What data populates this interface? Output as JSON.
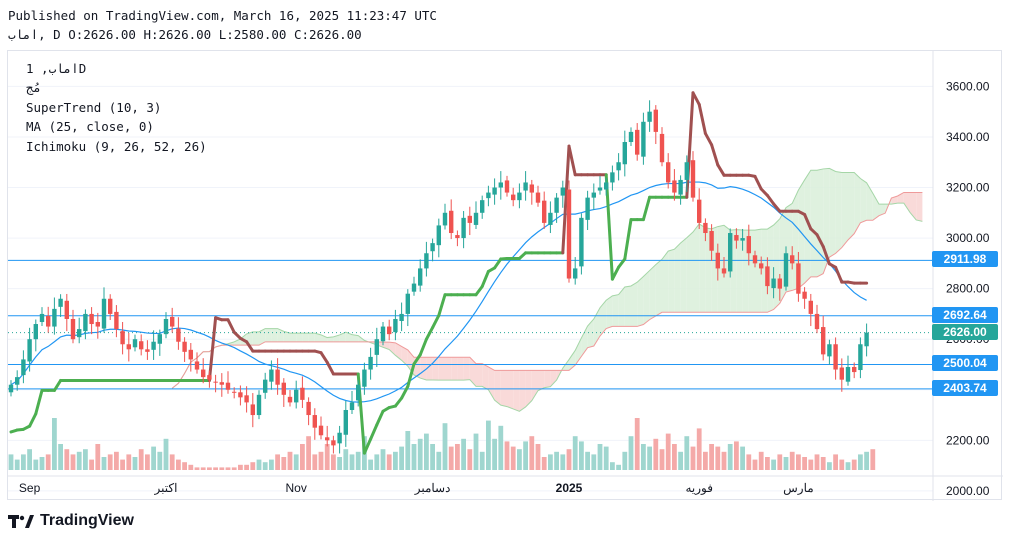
{
  "header": {
    "published": "Published on TradingView.com, March 16, 2025 11:23:47 UTC",
    "ohlc": "اماب, D O:2626.00 H:2626.00 L:2580.00 C:2626.00"
  },
  "legend": {
    "symbol": "اماب, 1D",
    "subtitle": "مُج",
    "supertrend": "SuperTrend (10, 3)",
    "ma": "MA (25, close, 0)",
    "ichimoku": "Ichimoku (9, 26, 52, 26)"
  },
  "footer": {
    "brand": "TradingView"
  },
  "colors": {
    "up": "#26a69a",
    "down": "#ef5350",
    "st_up": "#4caf50",
    "st_down": "#a05050",
    "ma": "#2196f3",
    "cloud_bear": "#f8d4d2",
    "cloud_bull": "#d9efd9"
  },
  "chart_data": {
    "type": "candlestick",
    "y_ticks": [
      "2000.00",
      "2200.00",
      "2400.00",
      "2600.00",
      "2800.00",
      "3000.00",
      "3200.00",
      "3400.00",
      "3600.00"
    ],
    "ylim": [
      1960,
      3740
    ],
    "x_labels": [
      {
        "i": 3,
        "label": "Sep"
      },
      {
        "i": 25,
        "label": "اكتبر"
      },
      {
        "i": 46,
        "label": "Nov"
      },
      {
        "i": 68,
        "label": "دسامبر"
      },
      {
        "i": 90,
        "label": "2025"
      },
      {
        "i": 111,
        "label": "فوريه"
      },
      {
        "i": 127,
        "label": "مارس"
      }
    ],
    "price_lines": [
      {
        "value": 2911.98,
        "label": "2911.98"
      },
      {
        "value": 2692.64,
        "label": "2692.64"
      },
      {
        "value": 2626.0,
        "label": "2626.00"
      },
      {
        "value": 2500.04,
        "label": "2500.04"
      },
      {
        "value": 2403.74,
        "label": "2403.74"
      }
    ],
    "closes": [
      2420,
      2450,
      2520,
      2600,
      2660,
      2700,
      2650,
      2720,
      2760,
      2680,
      2600,
      2640,
      2700,
      2660,
      2650,
      2760,
      2700,
      2640,
      2580,
      2560,
      2600,
      2560,
      2550,
      2590,
      2620,
      2680,
      2650,
      2590,
      2550,
      2520,
      2480,
      2450,
      2440,
      2430,
      2420,
      2400,
      2390,
      2370,
      2350,
      2300,
      2380,
      2440,
      2480,
      2420,
      2380,
      2350,
      2400,
      2360,
      2300,
      2250,
      2220,
      2200,
      2180,
      2230,
      2320,
      2350,
      2420,
      2480,
      2530,
      2600,
      2650,
      2620,
      2680,
      2700,
      2780,
      2820,
      2880,
      2940,
      2980,
      3050,
      3100,
      3020,
      3000,
      3080,
      3060,
      3100,
      3150,
      3180,
      3200,
      3220,
      3180,
      3150,
      3180,
      3220,
      3180,
      3140,
      3060,
      3100,
      3160,
      3200,
      2840,
      2880,
      3080,
      3160,
      3180,
      3200,
      3220,
      3260,
      3300,
      3380,
      3420,
      3330,
      3460,
      3500,
      3420,
      3300,
      3220,
      3180,
      3230,
      3300,
      3160,
      3060,
      3020,
      2950,
      2880,
      2860,
      3020,
      2990,
      3000,
      2940,
      2900,
      2880,
      2810,
      2840,
      2800,
      2940,
      2900,
      2780,
      2760,
      2700,
      2640,
      2540,
      2580,
      2480,
      2440,
      2490,
      2470,
      2580,
      2626
    ],
    "volume_relative": [
      0.3,
      0.2,
      0.3,
      0.4,
      0.2,
      0.25,
      0.3,
      1.0,
      0.5,
      0.4,
      0.3,
      0.35,
      0.4,
      0.2,
      0.5,
      0.25,
      0.3,
      0.35,
      0.2,
      0.3,
      0.25,
      0.4,
      0.3,
      0.45,
      0.35,
      0.6,
      0.3,
      0.2,
      0.15,
      0.1,
      0.05,
      0.05,
      0.05,
      0.05,
      0.05,
      0.05,
      0.05,
      0.1,
      0.1,
      0.15,
      0.2,
      0.15,
      0.2,
      0.3,
      0.25,
      0.35,
      0.3,
      0.5,
      0.65,
      0.3,
      0.35,
      0.5,
      0.3,
      0.25,
      0.4,
      0.3,
      0.35,
      0.65,
      0.2,
      0.3,
      0.4,
      0.3,
      0.35,
      0.45,
      0.75,
      0.5,
      0.6,
      0.7,
      0.5,
      0.35,
      0.9,
      0.45,
      0.5,
      0.6,
      0.4,
      0.7,
      0.35,
      0.95,
      0.6,
      0.85,
      0.55,
      0.45,
      0.4,
      0.55,
      0.65,
      0.5,
      0.25,
      0.3,
      0.35,
      0.3,
      0.4,
      0.65,
      0.55,
      0.35,
      0.3,
      0.5,
      0.45,
      0.15,
      0.1,
      0.35,
      0.65,
      1.0,
      0.5,
      0.45,
      0.6,
      0.4,
      0.7,
      0.5,
      0.35,
      0.65,
      0.45,
      0.8,
      0.35,
      0.5,
      0.45,
      0.35,
      0.5,
      0.55,
      0.45,
      0.3,
      0.2,
      0.35,
      0.25,
      0.2,
      0.3,
      0.25,
      0.35,
      0.3,
      0.25,
      0.2,
      0.3,
      0.25,
      0.15,
      0.3,
      0.2,
      0.15,
      0.2,
      0.3,
      0.35,
      0.4
    ]
  }
}
